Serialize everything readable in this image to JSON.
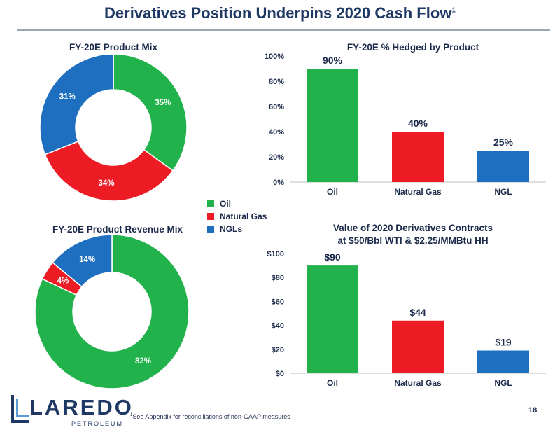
{
  "header": {
    "title": "Derivatives Position Underpins 2020 Cash Flow",
    "title_sup": "1"
  },
  "legend": {
    "items": [
      {
        "label": "Oil",
        "color": "#21b24b"
      },
      {
        "label": "Natural Gas",
        "color": "#ed1c24"
      },
      {
        "label": "NGLs",
        "color": "#1e6fbf"
      }
    ]
  },
  "footer": {
    "footnote_sup": "1",
    "footnote": "See Appendix for reconciliations of non-GAAP measures",
    "page_number": "18",
    "logo_word": "LAREDO",
    "logo_sub": "PETROLEUM"
  },
  "chart_data": [
    {
      "id": "product-mix",
      "type": "pie",
      "title": "FY-20E Product Mix",
      "categories": [
        "Oil",
        "Natural Gas",
        "NGLs"
      ],
      "values": [
        35,
        34,
        31
      ],
      "labels": [
        "35%",
        "34%",
        "31%"
      ],
      "colors": [
        "#21b24b",
        "#ed1c24",
        "#1e6fbf"
      ],
      "donut": true
    },
    {
      "id": "revenue-mix",
      "type": "pie",
      "title": "FY-20E Product Revenue Mix",
      "categories": [
        "Oil",
        "Natural Gas",
        "NGLs"
      ],
      "values": [
        82,
        4,
        14
      ],
      "labels": [
        "82%",
        "4%",
        "14%"
      ],
      "colors": [
        "#21b24b",
        "#ed1c24",
        "#1e6fbf"
      ],
      "donut": true
    },
    {
      "id": "hedged",
      "type": "bar",
      "title": "FY-20E % Hedged by Product",
      "categories": [
        "Oil",
        "Natural Gas",
        "NGL"
      ],
      "values": [
        90,
        40,
        25
      ],
      "value_labels": [
        "90%",
        "40%",
        "25%"
      ],
      "colors": [
        "#21b24b",
        "#ed1c24",
        "#1e6fbf"
      ],
      "yticks": [
        "0%",
        "20%",
        "40%",
        "60%",
        "80%",
        "100%"
      ],
      "ylim": [
        0,
        100
      ],
      "grid": false
    },
    {
      "id": "derivatives-value",
      "type": "bar",
      "title": "Value of 2020 Derivatives Contracts",
      "subtitle": "at $50/Bbl WTI & $2.25/MMBtu HH",
      "categories": [
        "Oil",
        "Natural Gas",
        "NGL"
      ],
      "values": [
        90,
        44,
        19
      ],
      "value_labels": [
        "$90",
        "$44",
        "$19"
      ],
      "colors": [
        "#21b24b",
        "#ed1c24",
        "#1e6fbf"
      ],
      "yticks": [
        "$0",
        "$20",
        "$40",
        "$60",
        "$80",
        "$100"
      ],
      "ylim": [
        0,
        100
      ],
      "grid": false
    }
  ]
}
